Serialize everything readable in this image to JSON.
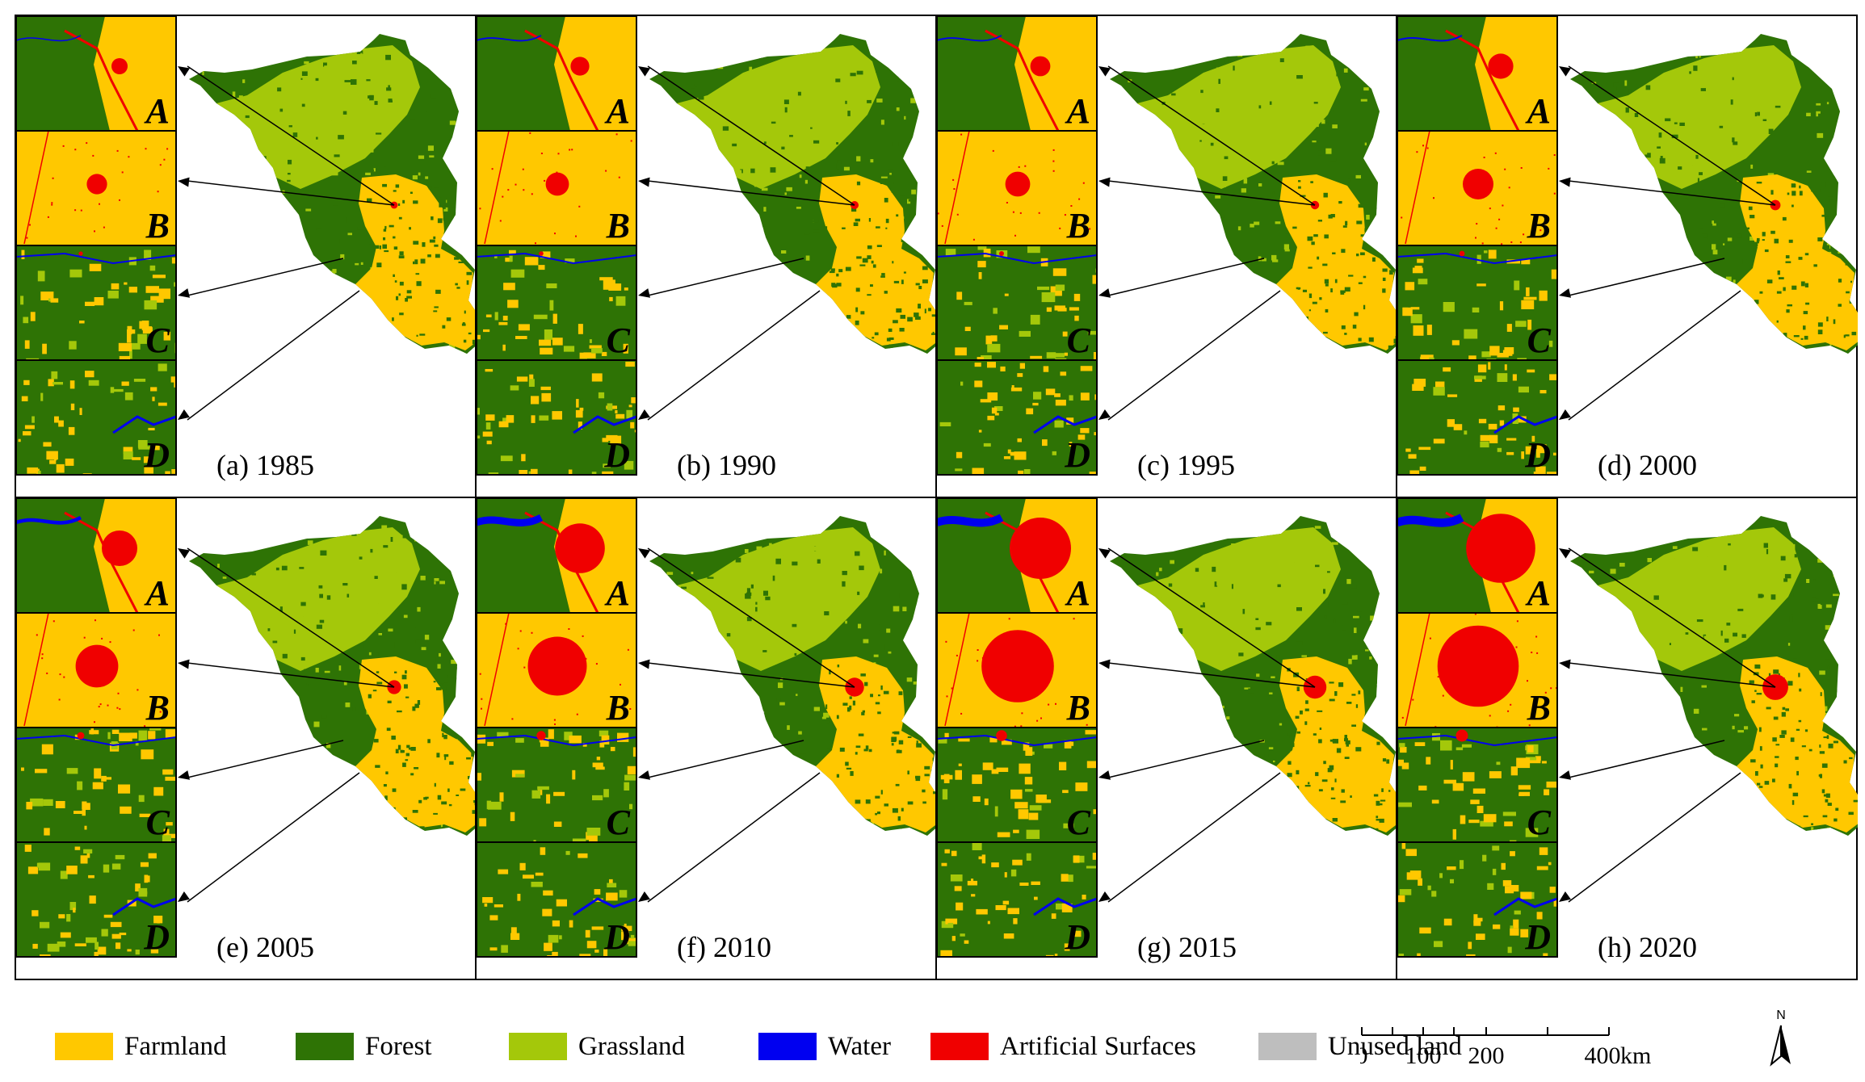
{
  "panels": [
    {
      "caption": "(a) 1985",
      "urban": 0.1,
      "water": 0.05
    },
    {
      "caption": "(b) 1990",
      "urban": 0.14,
      "water": 0.08
    },
    {
      "caption": "(c) 1995",
      "urban": 0.16,
      "water": 0.08
    },
    {
      "caption": "(d) 2000",
      "urban": 0.24,
      "water": 0.1
    },
    {
      "caption": "(e) 2005",
      "urban": 0.4,
      "water": 0.35
    },
    {
      "caption": "(f) 2010",
      "urban": 0.62,
      "water": 0.8
    },
    {
      "caption": "(g) 2015",
      "urban": 0.8,
      "water": 0.9
    },
    {
      "caption": "(h) 2020",
      "urban": 0.92,
      "water": 0.95
    }
  ],
  "inset_labels": [
    "A",
    "B",
    "C",
    "D"
  ],
  "legend": [
    {
      "label": "Farmland",
      "color": "#FFC800"
    },
    {
      "label": "Forest",
      "color": "#2E7305"
    },
    {
      "label": "Grassland",
      "color": "#A4C80A"
    },
    {
      "label": "Water",
      "color": "#0000F0"
    },
    {
      "label": "Artificial Surfaces",
      "color": "#F00000"
    },
    {
      "label": "Unused land",
      "color": "#BEBEBE"
    }
  ],
  "scale_bar": {
    "ticks": [
      "0",
      "100",
      "200",
      "400"
    ],
    "unit": "km"
  },
  "north_arrow": {
    "label": "N"
  }
}
